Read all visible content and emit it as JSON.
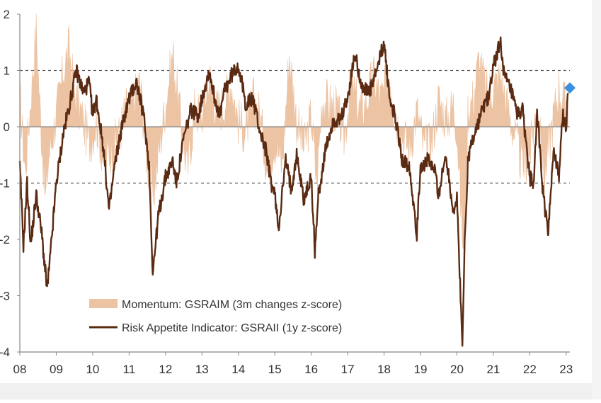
{
  "chart_data": {
    "type": "area+line",
    "x_ticks": [
      "08",
      "09",
      "10",
      "11",
      "12",
      "13",
      "14",
      "15",
      "16",
      "17",
      "18",
      "19",
      "20",
      "21",
      "22",
      "23"
    ],
    "y_ticks": [
      "2",
      "1",
      "0",
      "-1",
      "-2",
      "-3",
      "-4"
    ],
    "ylim": [
      -4,
      2
    ],
    "xlim": [
      2008.0,
      2023.1
    ],
    "reference_lines": [
      1,
      -1
    ],
    "legend": [
      {
        "name": "Momentum: GSRAIM (3m changes z-score)",
        "kind": "area"
      },
      {
        "name": "Risk Appetite Indicator: GSRAII (1y z-score)",
        "kind": "line"
      }
    ],
    "colors": {
      "momentum": "#ecc3a3",
      "risk_appetite": "#5a2a12",
      "marker": "#3d8fe0",
      "reference_line": "#555555",
      "axis": "#888888"
    },
    "series": [
      {
        "name": "Risk Appetite Indicator: GSRAII (1y z-score)",
        "x": [
          2008.0,
          2008.1,
          2008.2,
          2008.3,
          2008.45,
          2008.6,
          2008.75,
          2008.85,
          2009.0,
          2009.2,
          2009.4,
          2009.55,
          2009.75,
          2009.9,
          2010.0,
          2010.1,
          2010.3,
          2010.45,
          2010.6,
          2010.8,
          2011.0,
          2011.2,
          2011.4,
          2011.55,
          2011.65,
          2011.8,
          2012.0,
          2012.2,
          2012.3,
          2012.5,
          2012.7,
          2012.9,
          2013.0,
          2013.2,
          2013.35,
          2013.5,
          2013.6,
          2013.8,
          2014.0,
          2014.2,
          2014.4,
          2014.6,
          2014.75,
          2014.9,
          2015.0,
          2015.1,
          2015.3,
          2015.45,
          2015.6,
          2015.8,
          2016.0,
          2016.1,
          2016.2,
          2016.4,
          2016.6,
          2016.8,
          2017.0,
          2017.2,
          2017.4,
          2017.6,
          2017.8,
          2018.0,
          2018.15,
          2018.3,
          2018.5,
          2018.7,
          2018.9,
          2019.0,
          2019.2,
          2019.4,
          2019.5,
          2019.7,
          2019.9,
          2020.0,
          2020.1,
          2020.15,
          2020.2,
          2020.3,
          2020.4,
          2020.5,
          2020.7,
          2020.9,
          2021.0,
          2021.2,
          2021.3,
          2021.5,
          2021.65,
          2021.8,
          2022.0,
          2022.1,
          2022.2,
          2022.35,
          2022.5,
          2022.65,
          2022.8,
          2022.9,
          2023.0,
          2023.05
        ],
        "values": [
          -0.7,
          -2.1,
          -1.0,
          -2.1,
          -1.2,
          -1.9,
          -2.9,
          -2.2,
          -1.0,
          -0.1,
          0.5,
          1.0,
          0.6,
          0.8,
          0.2,
          0.5,
          -0.4,
          -1.5,
          -0.7,
          0.0,
          0.5,
          0.8,
          0.2,
          -0.7,
          -2.6,
          -1.6,
          -0.9,
          -0.6,
          -1.0,
          -0.2,
          0.3,
          0.2,
          0.5,
          1.0,
          0.5,
          0.2,
          0.6,
          0.9,
          1.1,
          0.4,
          0.5,
          -0.1,
          -0.4,
          -1.0,
          -1.2,
          -1.8,
          -0.6,
          -1.1,
          -0.5,
          -1.3,
          -0.9,
          -2.2,
          -1.2,
          -0.4,
          0.1,
          0.1,
          0.5,
          1.3,
          0.7,
          0.6,
          1.0,
          1.5,
          0.5,
          0.2,
          -0.6,
          -0.7,
          -1.9,
          -0.7,
          -0.6,
          -0.8,
          -1.2,
          -0.5,
          -1.5,
          -1.3,
          -3.0,
          -4.0,
          -2.3,
          -0.6,
          -0.3,
          -0.1,
          0.3,
          0.6,
          1.1,
          1.5,
          0.9,
          0.6,
          0.2,
          0.3,
          -0.9,
          -1.0,
          0.3,
          -1.1,
          -1.9,
          -0.4,
          -0.9,
          0.2,
          0.0,
          0.6
        ],
        "last_point_marker": [
          2023.1,
          0.69
        ]
      },
      {
        "name": "Momentum: GSRAIM (3m changes z-score)",
        "x": [
          2008.0,
          2008.15,
          2008.3,
          2008.45,
          2008.55,
          2008.7,
          2008.8,
          2009.0,
          2009.2,
          2009.35,
          2009.5,
          2009.7,
          2009.9,
          2010.1,
          2010.3,
          2010.5,
          2010.7,
          2010.9,
          2011.1,
          2011.3,
          2011.5,
          2011.65,
          2011.8,
          2012.0,
          2012.2,
          2012.4,
          2012.6,
          2012.8,
          2013.0,
          2013.2,
          2013.4,
          2013.6,
          2013.8,
          2014.0,
          2014.2,
          2014.4,
          2014.6,
          2014.8,
          2015.0,
          2015.2,
          2015.4,
          2015.6,
          2015.8,
          2016.0,
          2016.15,
          2016.3,
          2016.5,
          2016.7,
          2016.9,
          2017.1,
          2017.3,
          2017.5,
          2017.7,
          2017.9,
          2018.0,
          2018.15,
          2018.3,
          2018.5,
          2018.7,
          2018.9,
          2019.1,
          2019.3,
          2019.5,
          2019.7,
          2019.9,
          2020.0,
          2020.1,
          2020.2,
          2020.3,
          2020.45,
          2020.6,
          2020.8,
          2021.0,
          2021.2,
          2021.4,
          2021.6,
          2021.8,
          2022.0,
          2022.2,
          2022.4,
          2022.6,
          2022.8,
          2023.0,
          2023.05
        ],
        "values": [
          0.5,
          -0.8,
          0.5,
          1.7,
          0.4,
          -1.3,
          -0.5,
          0.2,
          1.0,
          1.4,
          0.6,
          0.2,
          -0.3,
          0.1,
          -0.6,
          -0.4,
          -0.2,
          0.3,
          0.4,
          0.8,
          -0.6,
          -1.3,
          -0.5,
          0.4,
          1.3,
          0.2,
          -0.8,
          0.3,
          0.2,
          0.9,
          0.3,
          0.4,
          0.8,
          0.1,
          -0.1,
          0.5,
          0.2,
          -0.8,
          -0.2,
          -0.7,
          1.3,
          0.1,
          -0.4,
          0.2,
          -1.0,
          0.5,
          0.4,
          0.3,
          -0.2,
          0.8,
          0.3,
          0.4,
          0.9,
          0.5,
          0.6,
          1.0,
          0.2,
          -0.1,
          -0.4,
          0.3,
          -0.4,
          -0.3,
          0.5,
          0.1,
          0.4,
          0.0,
          -1.3,
          -2.5,
          0.3,
          0.5,
          1.2,
          0.6,
          0.7,
          0.9,
          0.3,
          -0.2,
          -0.7,
          -0.5,
          0.4,
          -0.9,
          0.0,
          0.7,
          0.3,
          0.5
        ]
      }
    ]
  }
}
